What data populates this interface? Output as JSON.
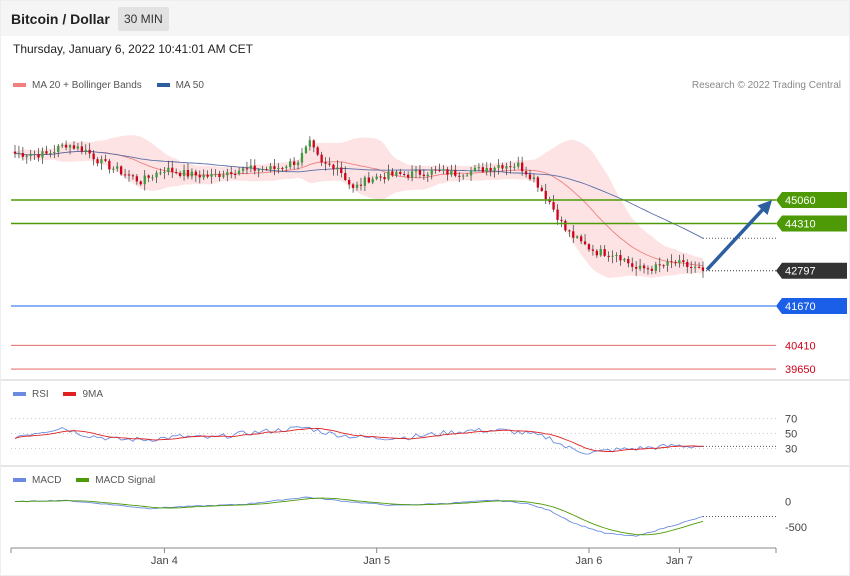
{
  "header": {
    "title": "Bitcoin / Dollar",
    "interval": "30 MIN",
    "datetime": "Thursday, January 6, 2022 10:41:01 AM CET"
  },
  "legend": {
    "ma20_label": "MA 20 + Bollinger Bands",
    "ma50_label": "MA 50",
    "credit": "Research © 2022 Trading Central",
    "rsi_label": "RSI",
    "rsi_ma_label": "9MA",
    "macd_label": "MACD",
    "macd_signal_label": "MACD Signal"
  },
  "colors": {
    "up": "#3d9b3d",
    "down": "#d0021b",
    "band": "#fde0e0",
    "ma20": "#f08080",
    "ma50": "#5a6fa8",
    "green_level": "#4d9a06",
    "blue_level": "#1b5fe8",
    "red_level": "#e05050",
    "current": "#333333",
    "arrow": "#2d5e9e",
    "rsi": "#6b8be0",
    "rsi_ma": "#e02020",
    "macd": "#6b8be0",
    "macd_signal": "#4d9a06"
  },
  "chart_data": [
    {
      "type": "candlestick",
      "x_ticks": [
        "Jan 4",
        "Jan 5",
        "Jan 6",
        "Jan 7"
      ],
      "ylim": [
        39300,
        48900
      ],
      "levels": [
        {
          "value": 45060,
          "label": "45060",
          "kind": "resistance"
        },
        {
          "value": 44310,
          "label": "44310",
          "kind": "resistance"
        },
        {
          "value": 42797,
          "label": "42797",
          "kind": "current"
        },
        {
          "value": 41670,
          "label": "41670",
          "kind": "support"
        },
        {
          "value": 40410,
          "label": "40410",
          "kind": "support-minor"
        },
        {
          "value": 39650,
          "label": "39650",
          "kind": "support-minor"
        }
      ],
      "close_anchors": [
        [
          0,
          46550
        ],
        [
          8,
          46520
        ],
        [
          13,
          46850
        ],
        [
          18,
          46650
        ],
        [
          22,
          46250
        ],
        [
          27,
          45960
        ],
        [
          32,
          45650
        ],
        [
          38,
          46050
        ],
        [
          44,
          45880
        ],
        [
          50,
          45820
        ],
        [
          55,
          46000
        ],
        [
          60,
          46040
        ],
        [
          66,
          46060
        ],
        [
          72,
          46320
        ],
        [
          75,
          46850
        ],
        [
          78,
          46200
        ],
        [
          82,
          46150
        ],
        [
          86,
          45400
        ],
        [
          90,
          45750
        ],
        [
          95,
          45850
        ],
        [
          100,
          45880
        ],
        [
          106,
          45980
        ],
        [
          112,
          45920
        ],
        [
          118,
          46020
        ],
        [
          123,
          46180
        ],
        [
          128,
          46180
        ],
        [
          132,
          45750
        ],
        [
          136,
          45000
        ],
        [
          140,
          44100
        ],
        [
          144,
          43680
        ],
        [
          148,
          43400
        ],
        [
          153,
          43350
        ],
        [
          158,
          42850
        ],
        [
          163,
          42900
        ],
        [
          168,
          43050
        ],
        [
          172,
          42900
        ],
        [
          175,
          42797
        ]
      ],
      "forecast": {
        "from": 42797,
        "to": 45060
      }
    },
    {
      "type": "line",
      "name": "RSI",
      "ticks": [
        70,
        50,
        30
      ],
      "ylim": [
        12,
        88
      ],
      "anchors": [
        [
          0,
          46
        ],
        [
          6,
          52
        ],
        [
          12,
          58
        ],
        [
          18,
          48
        ],
        [
          26,
          42
        ],
        [
          34,
          42
        ],
        [
          42,
          46
        ],
        [
          50,
          44
        ],
        [
          58,
          50
        ],
        [
          66,
          54
        ],
        [
          74,
          58
        ],
        [
          80,
          50
        ],
        [
          86,
          46
        ],
        [
          92,
          44
        ],
        [
          100,
          45
        ],
        [
          108,
          50
        ],
        [
          116,
          54
        ],
        [
          124,
          54
        ],
        [
          130,
          50
        ],
        [
          136,
          44
        ],
        [
          140,
          32
        ],
        [
          146,
          24
        ],
        [
          152,
          28
        ],
        [
          158,
          30
        ],
        [
          164,
          32
        ],
        [
          168,
          34
        ],
        [
          172,
          33
        ],
        [
          175,
          33
        ]
      ]
    },
    {
      "type": "line",
      "name": "MACD",
      "ticks": [
        0,
        -500
      ],
      "ylim": [
        -850,
        180
      ],
      "anchors": [
        [
          0,
          -10
        ],
        [
          12,
          20
        ],
        [
          24,
          -60
        ],
        [
          34,
          -140
        ],
        [
          44,
          -100
        ],
        [
          58,
          -60
        ],
        [
          74,
          80
        ],
        [
          84,
          0
        ],
        [
          96,
          -80
        ],
        [
          110,
          -40
        ],
        [
          122,
          20
        ],
        [
          130,
          -40
        ],
        [
          136,
          -180
        ],
        [
          142,
          -420
        ],
        [
          150,
          -620
        ],
        [
          158,
          -680
        ],
        [
          166,
          -500
        ],
        [
          175,
          -300
        ]
      ]
    }
  ]
}
